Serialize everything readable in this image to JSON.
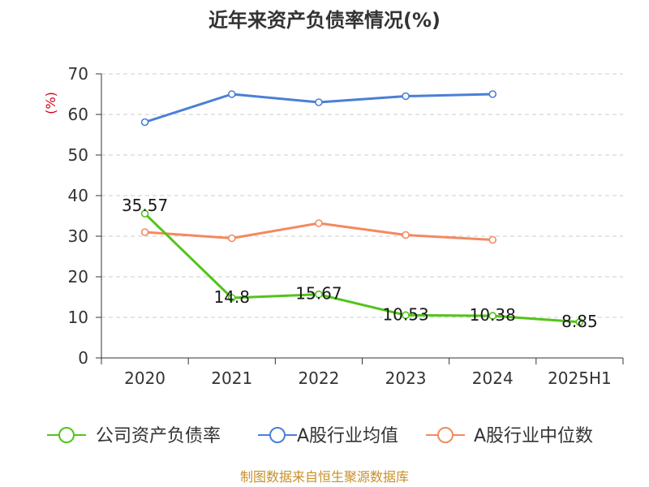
{
  "chart_data": {
    "type": "line",
    "title": "近年来资产负债率情况(%)",
    "ylabel": "(%)",
    "xlabel": "",
    "categories": [
      "2020",
      "2021",
      "2022",
      "2023",
      "2024",
      "2025H1"
    ],
    "ylim": [
      0,
      70
    ],
    "yticks": [
      0,
      10,
      20,
      30,
      40,
      50,
      60,
      70
    ],
    "grid": true,
    "legend_position": "bottom",
    "series": [
      {
        "name": "公司资产负债率",
        "color": "#52c41a",
        "values": [
          35.57,
          14.8,
          15.67,
          10.53,
          10.38,
          8.85
        ],
        "labels": [
          "35.57",
          "14.8",
          "15.67",
          "10.53",
          "10.38",
          "8.85"
        ]
      },
      {
        "name": "A股行业均值",
        "color": "#4a7fd6",
        "values": [
          58.1,
          65.0,
          63.0,
          64.5,
          65.0,
          null
        ]
      },
      {
        "name": "A股行业中位数",
        "color": "#f4895f",
        "values": [
          31.0,
          29.5,
          33.2,
          30.3,
          29.1,
          null
        ]
      }
    ],
    "source": "制图数据来自恒生聚源数据库",
    "source_color": "#c8902a",
    "ylabel_color": "#d0021b"
  }
}
